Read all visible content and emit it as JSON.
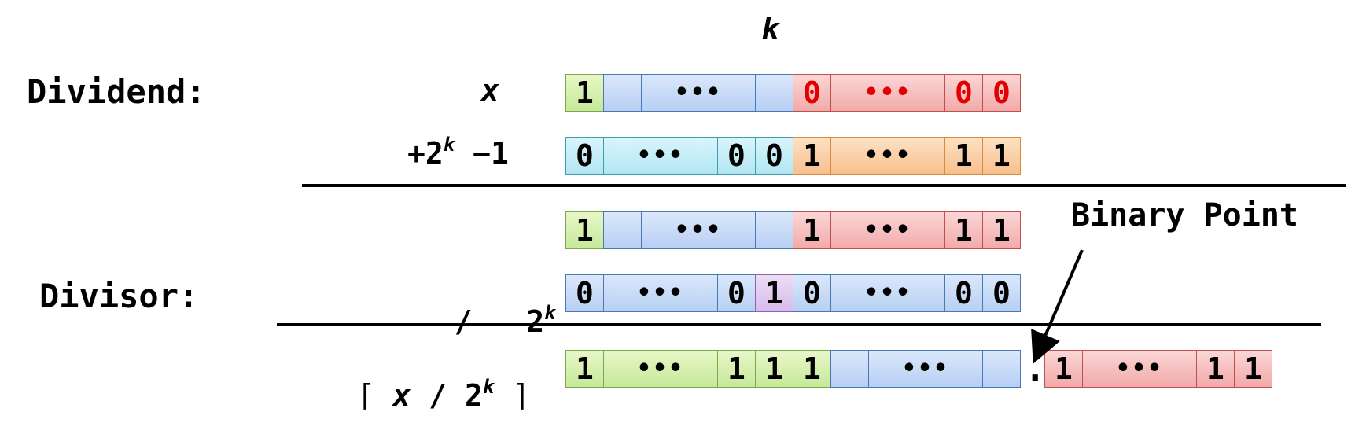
{
  "top_label": "k",
  "dividend_label": "Dividend:",
  "divisor_label": "Divisor:",
  "row_x": "x",
  "row_add": {
    "prefix": "+2",
    "exp": "k",
    "suffix": " −1"
  },
  "row_div": {
    "prefix": "/   2",
    "exp": "k"
  },
  "row_ceil": {
    "open": "⌈ ",
    "x": "x",
    "mid": " / 2",
    "exp": "k",
    "close": " ⌉"
  },
  "binary_point_label": "Binary Point",
  "binary_point_dot": ".",
  "rows": {
    "r1": [
      "1",
      "",
      "•••",
      "",
      "0",
      "•••",
      "0",
      "0"
    ],
    "r2": [
      "0",
      "•••",
      "0",
      "0",
      "1",
      "•••",
      "1",
      "1"
    ],
    "r3": [
      "1",
      "",
      "•••",
      "",
      "1",
      "•••",
      "1",
      "1"
    ],
    "r4": [
      "0",
      "•••",
      "0",
      "1",
      "0",
      "•••",
      "0",
      "0"
    ],
    "r5": [
      "1",
      "•••",
      "1",
      "1",
      "1",
      "",
      "•••",
      ""
    ],
    "r5frac": [
      "1",
      "•••",
      "1",
      "1"
    ]
  },
  "colors": {
    "green": "#c6e99a",
    "blue": "#b7cff3",
    "red": "#f2aaaa",
    "cyan": "#b3e6f2",
    "orange": "#f8c08e",
    "purple": "#d6bceb",
    "zero_text": "#e00000"
  }
}
